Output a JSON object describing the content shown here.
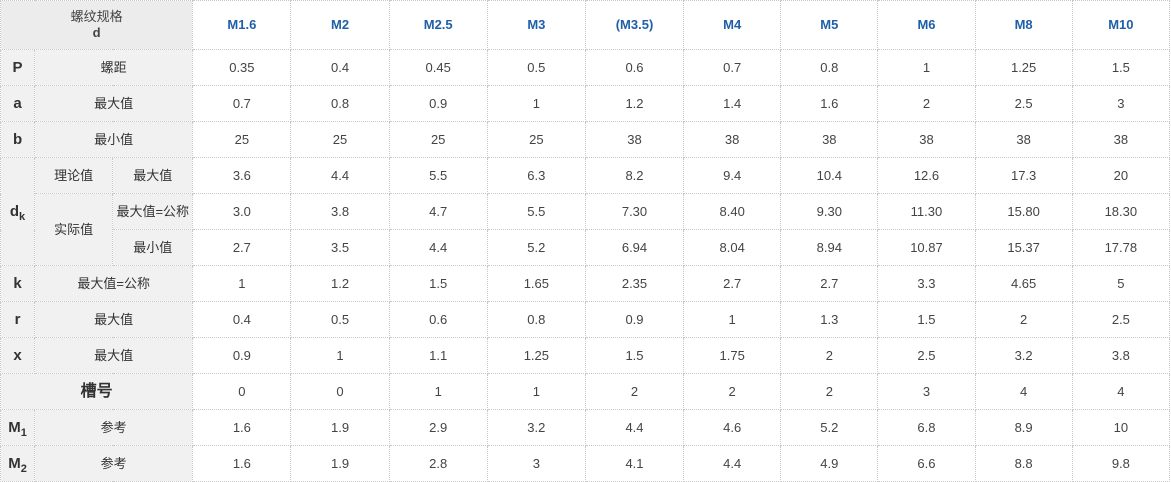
{
  "header": {
    "corner_label": "螺纹规格",
    "corner_symbol": "d",
    "sizes": [
      "M1.6",
      "M2",
      "M2.5",
      "M3",
      "(M3.5)",
      "M4",
      "M5",
      "M6",
      "M8",
      "M10"
    ]
  },
  "rows": {
    "P": {
      "symbol": "P",
      "label": "螺距",
      "values": [
        "0.35",
        "0.4",
        "0.45",
        "0.5",
        "0.6",
        "0.7",
        "0.8",
        "1",
        "1.25",
        "1.5"
      ]
    },
    "a": {
      "symbol": "a",
      "label": "最大值",
      "values": [
        "0.7",
        "0.8",
        "0.9",
        "1",
        "1.2",
        "1.4",
        "1.6",
        "2",
        "2.5",
        "3"
      ]
    },
    "b": {
      "symbol": "b",
      "label": "最小值",
      "values": [
        "25",
        "25",
        "25",
        "25",
        "38",
        "38",
        "38",
        "38",
        "38",
        "38"
      ]
    },
    "dk": {
      "symbol": "d",
      "symbol_sub": "k",
      "theory_label": "理论值",
      "actual_label": "实际值",
      "theory_max": {
        "label": "最大值",
        "values": [
          "3.6",
          "4.4",
          "5.5",
          "6.3",
          "8.2",
          "9.4",
          "10.4",
          "12.6",
          "17.3",
          "20"
        ]
      },
      "actual_max": {
        "label": "最大值=公称",
        "values": [
          "3.0",
          "3.8",
          "4.7",
          "5.5",
          "7.30",
          "8.40",
          "9.30",
          "11.30",
          "15.80",
          "18.30"
        ]
      },
      "actual_min": {
        "label": "最小值",
        "values": [
          "2.7",
          "3.5",
          "4.4",
          "5.2",
          "6.94",
          "8.04",
          "8.94",
          "10.87",
          "15.37",
          "17.78"
        ]
      }
    },
    "k": {
      "symbol": "k",
      "label": "最大值=公称",
      "values": [
        "1",
        "1.2",
        "1.5",
        "1.65",
        "2.35",
        "2.7",
        "2.7",
        "3.3",
        "4.65",
        "5"
      ]
    },
    "r": {
      "symbol": "r",
      "label": "最大值",
      "values": [
        "0.4",
        "0.5",
        "0.6",
        "0.8",
        "0.9",
        "1",
        "1.3",
        "1.5",
        "2",
        "2.5"
      ]
    },
    "x": {
      "symbol": "x",
      "label": "最大值",
      "values": [
        "0.9",
        "1",
        "1.1",
        "1.25",
        "1.5",
        "1.75",
        "2",
        "2.5",
        "3.2",
        "3.8"
      ]
    },
    "slot": {
      "label": "槽号",
      "values": [
        "0",
        "0",
        "1",
        "1",
        "2",
        "2",
        "2",
        "3",
        "4",
        "4"
      ]
    },
    "M1": {
      "symbol": "M",
      "symbol_sub": "1",
      "label": "参考",
      "values": [
        "1.6",
        "1.9",
        "2.9",
        "3.2",
        "4.4",
        "4.6",
        "5.2",
        "6.8",
        "8.9",
        "10"
      ]
    },
    "M2": {
      "symbol": "M",
      "symbol_sub": "2",
      "label": "参考",
      "values": [
        "1.6",
        "1.9",
        "2.8",
        "3",
        "4.1",
        "4.4",
        "4.9",
        "6.6",
        "8.8",
        "9.8"
      ]
    }
  }
}
